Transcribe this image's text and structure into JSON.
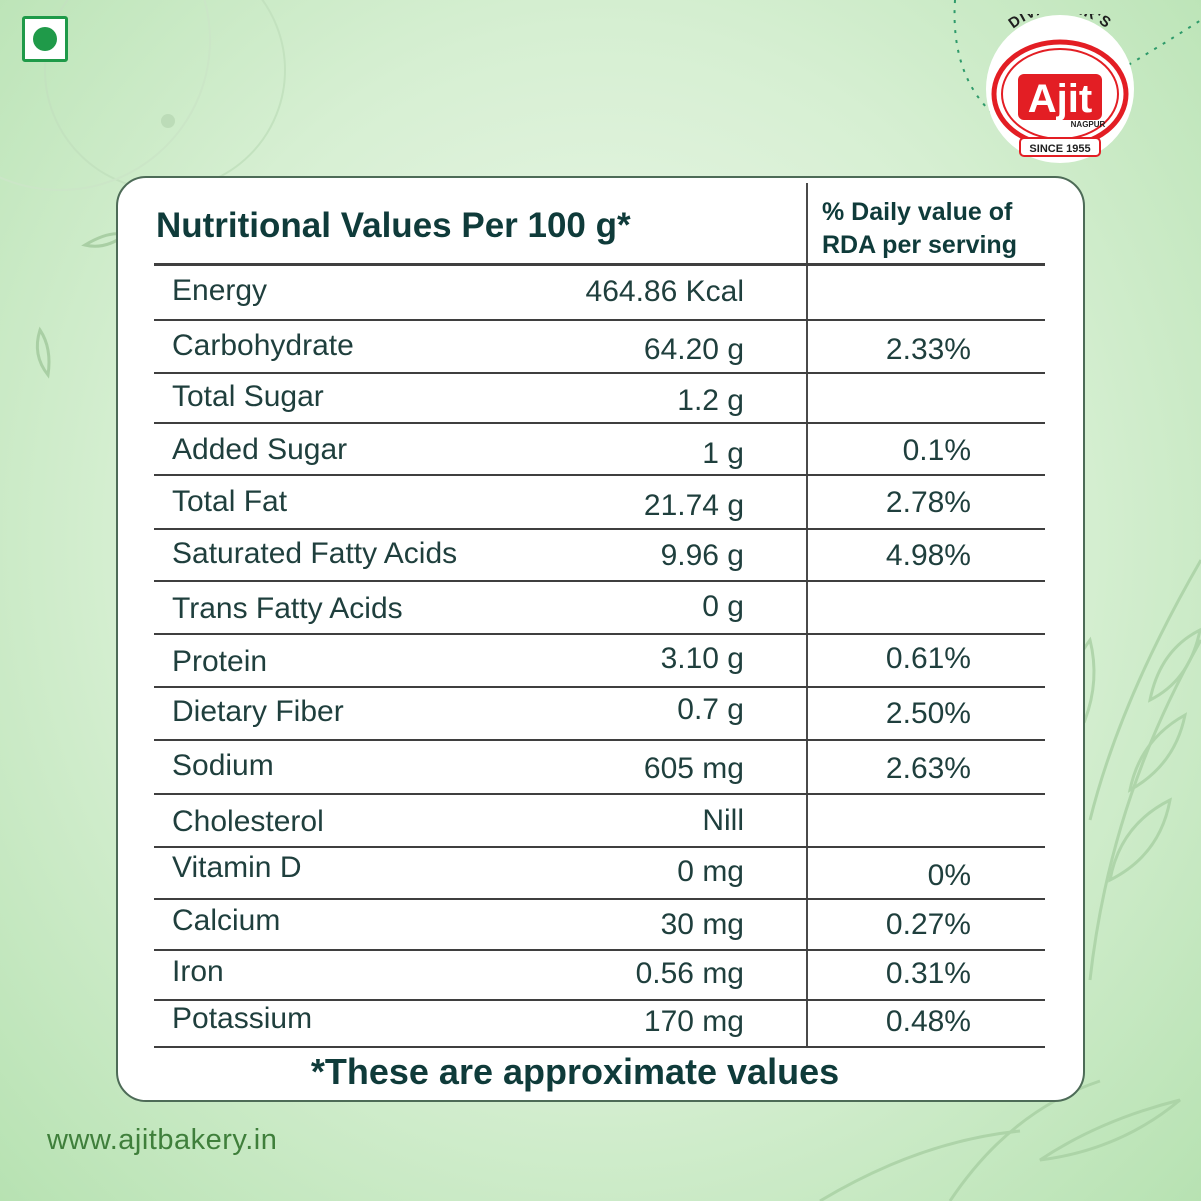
{
  "brand": {
    "top_text": "DIVADKAR'S",
    "name": "Ajit",
    "city": "NAGPUR",
    "since": "SINCE 1955"
  },
  "table": {
    "title": "Nutritional Values Per 100 g*",
    "rda_header_line1": "% Daily value of",
    "rda_header_line2": "RDA per serving",
    "rows": [
      {
        "label": "Energy",
        "value": "464.86 Kcal",
        "pct": ""
      },
      {
        "label": "Carbohydrate",
        "value": "64.20 g",
        "pct": "2.33%"
      },
      {
        "label": "Total Sugar",
        "value": "1.2 g",
        "pct": ""
      },
      {
        "label": "Added Sugar",
        "value": "1 g",
        "pct": "0.1%"
      },
      {
        "label": "Total Fat",
        "value": "21.74 g",
        "pct": "2.78%"
      },
      {
        "label": "Saturated Fatty Acids",
        "value": "9.96 g",
        "pct": "4.98%"
      },
      {
        "label": "Trans Fatty Acids",
        "value": "0 g",
        "pct": ""
      },
      {
        "label": "Protein",
        "value": "3.10 g",
        "pct": "0.61%"
      },
      {
        "label": "Dietary Fiber",
        "value": "0.7 g",
        "pct": "2.50%"
      },
      {
        "label": "Sodium",
        "value": "605 mg",
        "pct": "2.63%"
      },
      {
        "label": "Cholesterol",
        "value": "Nill",
        "pct": ""
      },
      {
        "label": "Vitamin D",
        "value": "0 mg",
        "pct": "0%"
      },
      {
        "label": "Calcium",
        "value": "30 mg",
        "pct": "0.27%"
      },
      {
        "label": "Iron",
        "value": "0.56 mg",
        "pct": "0.31%"
      },
      {
        "label": "Potassium",
        "value": "170 mg",
        "pct": "0.48%"
      }
    ],
    "footnote": "*These are approximate values"
  },
  "website": "www.ajitbakery.in",
  "colors": {
    "brand_red": "#e31e24",
    "veg_green": "#1f9a49",
    "text_dark": "#0f3b3a"
  }
}
